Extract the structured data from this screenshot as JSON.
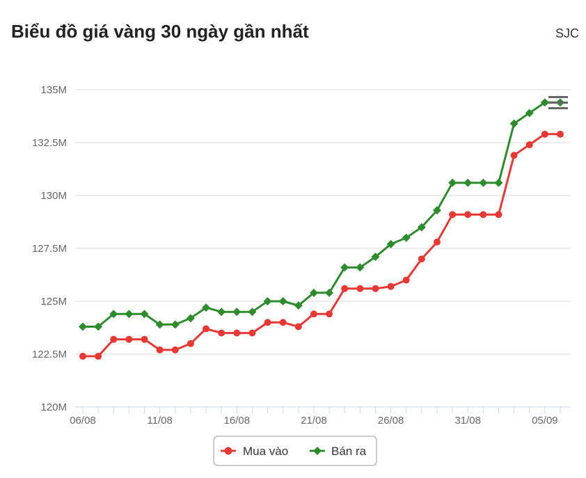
{
  "header": {
    "title": "Biểu đồ giá vàng 30 ngày gần nhất",
    "source": "SJC"
  },
  "colors": {
    "mua_vao": "#e53935",
    "ban_ra": "#2e8b2e",
    "grid": "#d9d9d9",
    "axis": "#ccd6eb"
  },
  "chart_data": {
    "type": "line",
    "title": "Biểu đồ giá vàng 30 ngày gần nhất",
    "xlabel": "",
    "ylabel": "",
    "unit": "M",
    "ylim": [
      120,
      135
    ],
    "yticks": [
      120,
      122.5,
      125,
      127.5,
      130,
      132.5,
      135
    ],
    "ytick_labels": [
      "120M",
      "122.5M",
      "125M",
      "127.5M",
      "130M",
      "132.5M",
      "135M"
    ],
    "xtick_labels": [
      "06/08",
      "11/08",
      "16/08",
      "21/08",
      "26/08",
      "31/08",
      "05/09"
    ],
    "x": [
      "06/08",
      "07/08",
      "08/08",
      "09/08",
      "10/08",
      "11/08",
      "12/08",
      "13/08",
      "14/08",
      "15/08",
      "16/08",
      "17/08",
      "18/08",
      "19/08",
      "20/08",
      "21/08",
      "22/08",
      "23/08",
      "24/08",
      "25/08",
      "26/08",
      "27/08",
      "28/08",
      "29/08",
      "30/08",
      "31/08",
      "01/09",
      "02/09",
      "03/09",
      "04/09",
      "05/09",
      "06/09"
    ],
    "grid": true,
    "legend_position": "bottom-center",
    "series": [
      {
        "name": "Mua vào",
        "marker": "circle",
        "values": [
          122.4,
          122.4,
          123.2,
          123.2,
          123.2,
          122.7,
          122.7,
          123.0,
          123.7,
          123.5,
          123.5,
          123.5,
          124.0,
          124.0,
          123.8,
          124.4,
          124.4,
          125.6,
          125.6,
          125.6,
          125.7,
          126.0,
          127.0,
          127.8,
          129.1,
          129.1,
          129.1,
          129.1,
          131.9,
          132.4,
          132.9,
          132.9
        ]
      },
      {
        "name": "Bán ra",
        "marker": "diamond",
        "values": [
          123.8,
          123.8,
          124.4,
          124.4,
          124.4,
          123.9,
          123.9,
          124.2,
          124.7,
          124.5,
          124.5,
          124.5,
          125.0,
          125.0,
          124.8,
          125.4,
          125.4,
          126.6,
          126.6,
          127.1,
          127.7,
          128.0,
          128.5,
          129.3,
          130.6,
          130.6,
          130.6,
          130.6,
          133.4,
          133.9,
          134.4,
          134.4
        ]
      }
    ]
  }
}
